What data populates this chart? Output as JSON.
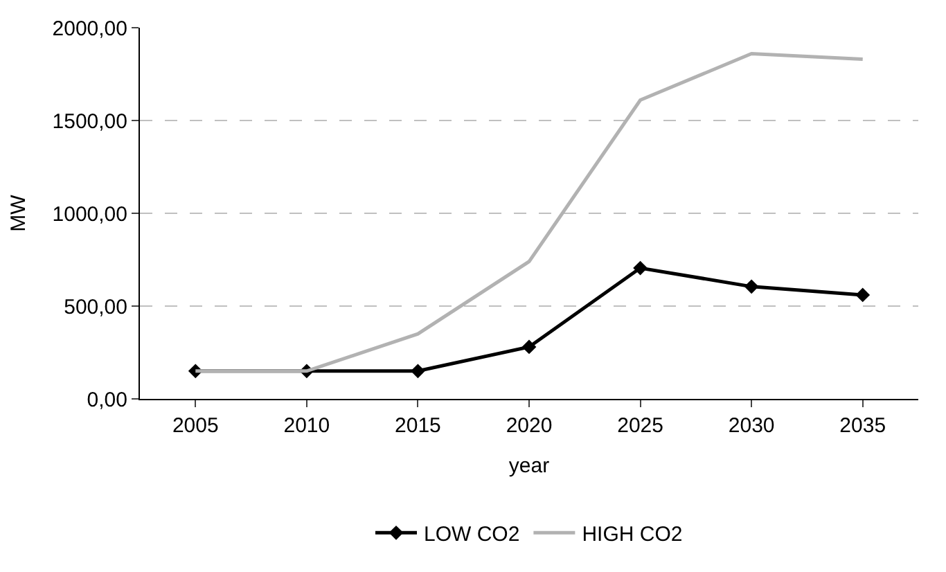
{
  "chart_data": {
    "type": "line",
    "xlabel": "year",
    "ylabel": "MW",
    "categories": [
      "2005",
      "2010",
      "2015",
      "2020",
      "2025",
      "2030",
      "2035"
    ],
    "series": [
      {
        "name": "LOW CO2",
        "color": "#000000",
        "marker": "diamond",
        "values": [
          150,
          150,
          150,
          280,
          705,
          605,
          560
        ]
      },
      {
        "name": "HIGH CO2",
        "color": "#b2b2b2",
        "marker": "none",
        "values": [
          150,
          150,
          350,
          740,
          1610,
          1860,
          1830
        ]
      }
    ],
    "ylim": [
      0,
      2000
    ],
    "yticks": [
      {
        "value": 0,
        "label": "0,00"
      },
      {
        "value": 500,
        "label": "500,00"
      },
      {
        "value": 1000,
        "label": "1000,00"
      },
      {
        "value": 1500,
        "label": "1500,00"
      },
      {
        "value": 2000,
        "label": "2000,00"
      }
    ],
    "grid": "y",
    "legend": "bottom"
  }
}
